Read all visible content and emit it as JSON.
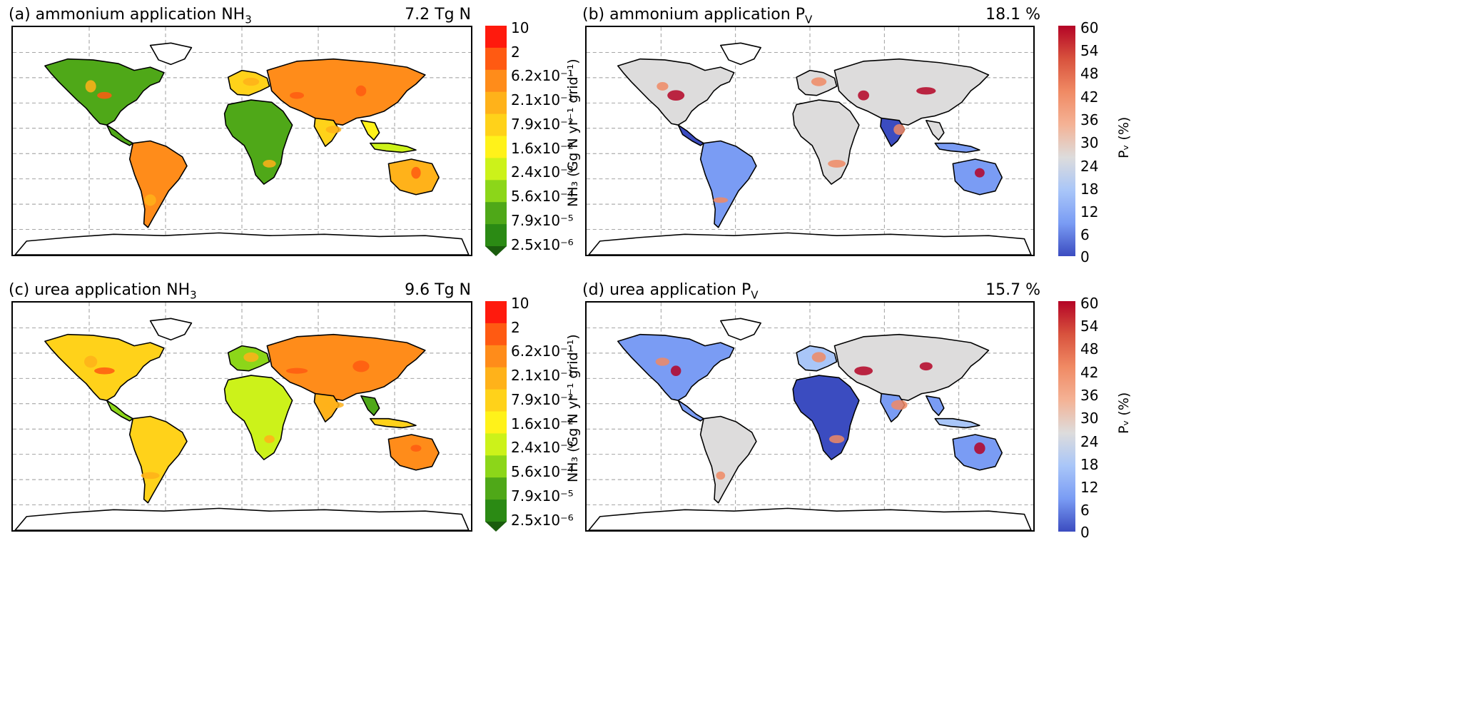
{
  "panels": [
    {
      "id": "a",
      "title_prefix": "(a) ammonium application NH",
      "title_sub": "3",
      "total": "7.2 Tg N",
      "type": "emission"
    },
    {
      "id": "b",
      "title_prefix": "(b) ammonium application P",
      "title_sub": "V",
      "total": "18.1 %",
      "type": "pv"
    },
    {
      "id": "c",
      "title_prefix": "(c) urea application NH",
      "title_sub": "3",
      "total": "9.6 Tg N",
      "type": "emission"
    },
    {
      "id": "d",
      "title_prefix": "(d) urea application P",
      "title_sub": "V",
      "total": "15.7 %",
      "type": "pv"
    }
  ],
  "emission_colorbar": {
    "ticks": [
      "10",
      "2",
      "6.2x10⁻¹",
      "2.1x10⁻¹",
      "7.9x10⁻²",
      "1.6x10⁻²",
      "2.4x10⁻³",
      "5.6x10⁻⁴",
      "7.9x10⁻⁵",
      "2.5x10⁻⁶"
    ],
    "label": "NH₃ (Gg N yr⁻¹ grid⁻¹)",
    "colors": [
      "#ff1a0d",
      "#ff5a12",
      "#ff8c1a",
      "#ffb21a",
      "#ffd21a",
      "#fff21a",
      "#ccf21a",
      "#8cd619",
      "#4fa818",
      "#2b8a14",
      "#1a5c0d"
    ]
  },
  "pv_colorbar": {
    "ticks": [
      "60",
      "54",
      "48",
      "42",
      "36",
      "30",
      "24",
      "18",
      "12",
      "6",
      "0"
    ],
    "label": "Pᵥ (%)",
    "colors": [
      "#b40426",
      "#d8523d",
      "#f08a64",
      "#f4b295",
      "#dddcdc",
      "#a9c6f8",
      "#7a9cf4",
      "#3b4cc0"
    ]
  }
}
